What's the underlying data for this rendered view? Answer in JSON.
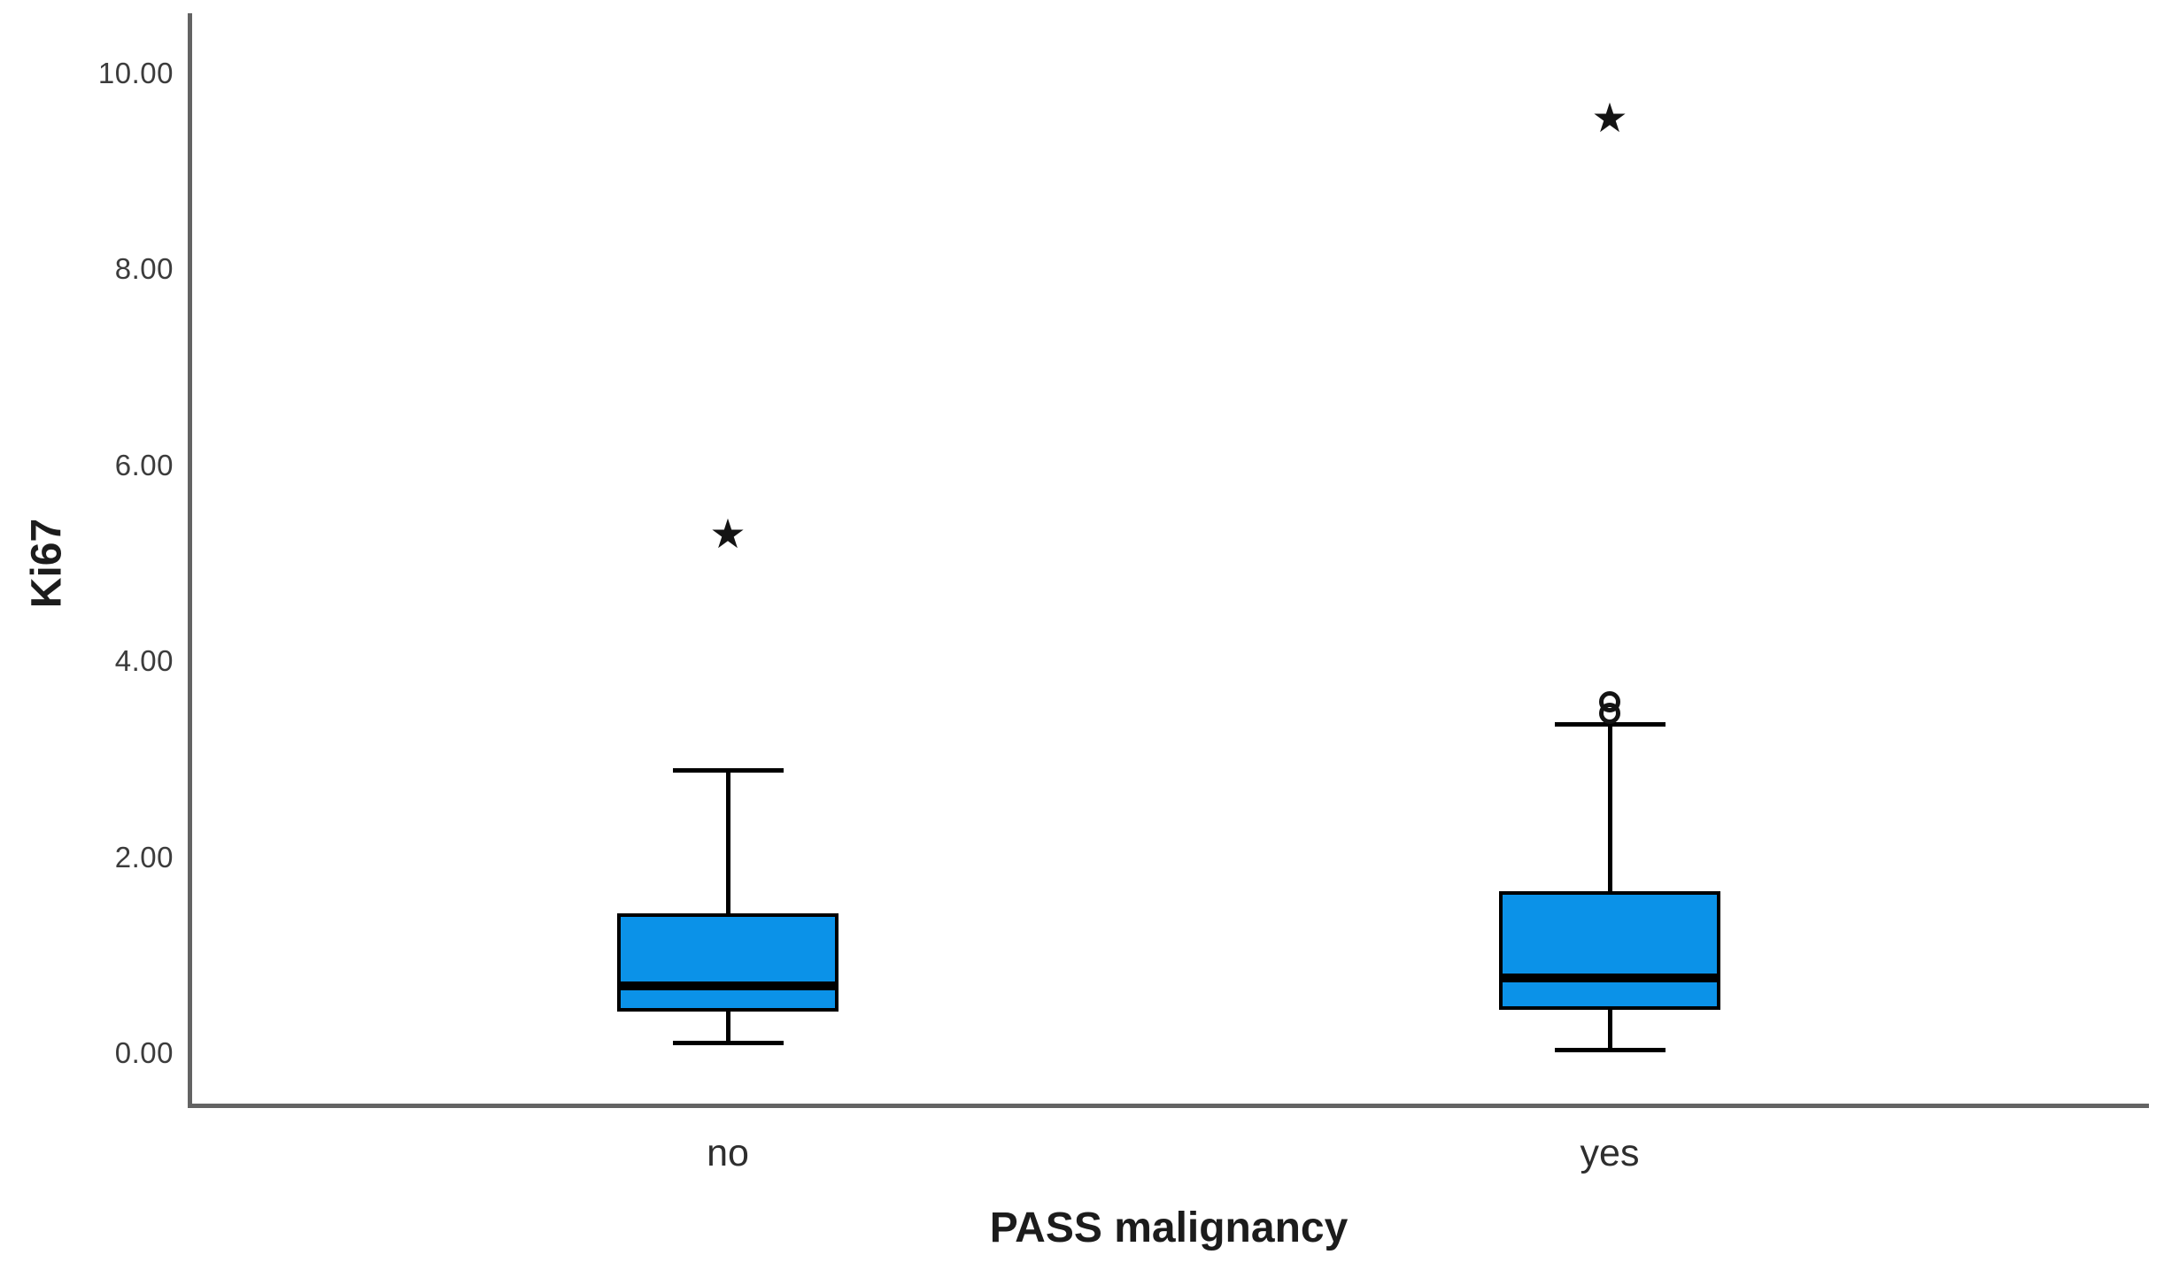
{
  "chart_data": {
    "type": "boxplot",
    "title": "",
    "xlabel": "PASS malignancy",
    "ylabel": "Ki67",
    "ylim": [
      -0.55,
      10.65
    ],
    "y_ticks": [
      0,
      2,
      4,
      6,
      8,
      10
    ],
    "y_tick_labels": [
      "0.00",
      "2.00",
      "4.00",
      "6.00",
      "8.00",
      "10.00"
    ],
    "grid": false,
    "legend": "none",
    "categories": [
      "no",
      "yes"
    ],
    "series": [
      {
        "category": "no",
        "whisker_low": 0.1,
        "q1": 0.42,
        "median": 0.69,
        "q3": 1.43,
        "whisker_high": 2.89,
        "outliers": [],
        "extremes": [
          5.3
        ]
      },
      {
        "category": "yes",
        "whisker_low": 0.03,
        "q1": 0.44,
        "median": 0.77,
        "q3": 1.65,
        "whisker_high": 3.36,
        "outliers": [
          3.47,
          3.59
        ],
        "extremes": [
          9.55
        ]
      }
    ],
    "colors": {
      "box_fill": "#0b92e8",
      "box_border": "#000000",
      "median": "#000000",
      "whisker": "#000000",
      "axis_line": "#636363",
      "text": "#2e2e2e"
    },
    "markers": {
      "outlier": "circle",
      "extreme": "star-asterisk"
    }
  }
}
